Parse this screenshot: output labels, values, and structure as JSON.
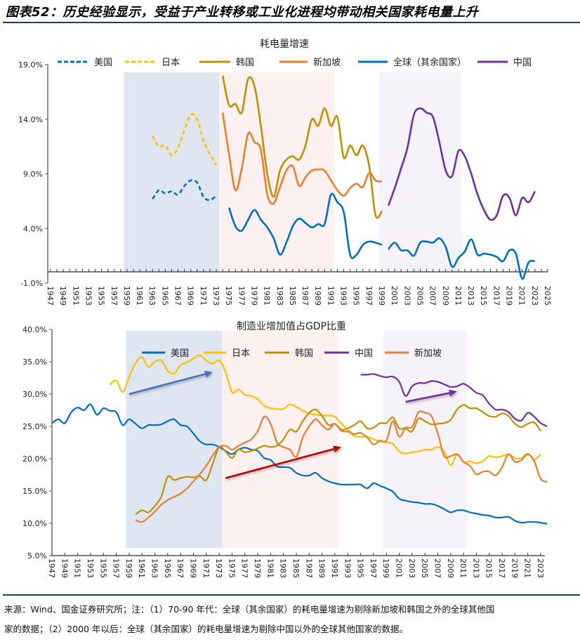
{
  "title": "图表52：历史经验显示，受益于产业转移或工业化进程均带动相关国家耗电量上升",
  "footnote": {
    "line1": "来源：Wind、国金证券研究所；注：（1）70-90 年代：全球（其余国家）的耗电量增速为剔除新加坡和韩国之外的全球其他国",
    "line2": "家的数据；（2）2000 年以后：全球（其余国家）的耗电量增速为剔除中国以外的全球其他国家的数据。"
  },
  "colors": {
    "us": "#0070C0",
    "japan": "#FFC000",
    "korea": "#BF9000",
    "singapore": "#ED7D31",
    "global": "#0070C0",
    "china": "#7030A0",
    "shade_1": "#E0E6F1",
    "shade_2": "#FDF0F0",
    "shade_3": "#F6F2F9",
    "arrow_blue": "#4472C4",
    "arrow_red": "#C00000",
    "arrow_purple": "#7030A0"
  },
  "chart_data": [
    {
      "type": "line",
      "title": "耗电量增速",
      "ylim": [
        -1,
        19
      ],
      "y_ticks": [
        "19.0%",
        "14.0%",
        "9.0%",
        "4.0%",
        "-1.0%"
      ],
      "y_tick_values": [
        19,
        14,
        9,
        4,
        -1
      ],
      "x_ticks": [
        "1947",
        "1949",
        "1951",
        "1953",
        "1955",
        "1957",
        "1959",
        "1961",
        "1963",
        "1965",
        "1967",
        "1969",
        "1971",
        "1973",
        "1975",
        "1977",
        "1979",
        "1981",
        "1983",
        "1985",
        "1987",
        "1989",
        "1991",
        "1993",
        "1995",
        "1997",
        "1999",
        "2001",
        "2003",
        "2005",
        "2007",
        "2009",
        "2011",
        "2013",
        "2015",
        "2017",
        "2019",
        "2021",
        "2023",
        "2025"
      ],
      "xlim": [
        1947,
        2025
      ],
      "grid": false,
      "legend": "top",
      "highlight_periods": [
        [
          1959,
          1973
        ],
        [
          1974,
          1991
        ],
        [
          1999,
          2011
        ]
      ],
      "legend_items": [
        {
          "name": "美国",
          "color_key": "us",
          "style": "dashed"
        },
        {
          "name": "日本",
          "color_key": "japan",
          "style": "dashed"
        },
        {
          "name": "韩国",
          "color_key": "korea",
          "style": "solid"
        },
        {
          "name": "新加坡",
          "color_key": "singapore",
          "style": "solid"
        },
        {
          "name": "全球（其余国家）",
          "color_key": "global",
          "style": "solid"
        },
        {
          "name": "中国",
          "color_key": "china",
          "style": "solid"
        }
      ],
      "series": [
        {
          "name": "美国",
          "color_key": "us",
          "style": "dashed",
          "start_year": 1963,
          "values": [
            6.7,
            7.5,
            7.2,
            7.4,
            7.1,
            7.9,
            8.4,
            8.2,
            6.9,
            6.6,
            7.0
          ]
        },
        {
          "name": "日本",
          "color_key": "japan",
          "style": "dashed",
          "start_year": 1963,
          "values": [
            12.5,
            11.5,
            11.6,
            10.7,
            11.4,
            13.0,
            14.4,
            14.0,
            12.0,
            10.8,
            9.8
          ]
        },
        {
          "name": "韩国",
          "color_key": "korea",
          "style": "solid",
          "start_year": 1974,
          "values": [
            18.0,
            15.3,
            15.4,
            14.6,
            17.7,
            17.0,
            13.4,
            9.0,
            6.9,
            9.3,
            10.3,
            10.6,
            10.3,
            11.6,
            14.0,
            13.4,
            15.0,
            13.4,
            14.2,
            10.5,
            11.6,
            10.7,
            11.6,
            9.7,
            5.2,
            5.6
          ]
        },
        {
          "name": "新加坡",
          "color_key": "singapore",
          "style": "solid",
          "start_year": 1974,
          "values": [
            14.6,
            10.8,
            7.5,
            9.5,
            12.7,
            11.9,
            11.2,
            7.1,
            6.3,
            7.8,
            9.3,
            9.7,
            7.9,
            8.7,
            9.3,
            9.4,
            9.3,
            8.4,
            7.5,
            7.0,
            7.7,
            8.1,
            7.8,
            9.1,
            8.4,
            8.3
          ]
        },
        {
          "name": "全球（其余国家）",
          "color_key": "global",
          "style": "solid",
          "start_year": 1975,
          "values": [
            5.9,
            4.2,
            3.8,
            4.8,
            5.7,
            4.8,
            4.1,
            3.1,
            1.6,
            2.7,
            4.2,
            4.9,
            4.5,
            4.1,
            4.4,
            4.4,
            7.1,
            6.4,
            5.5,
            1.6,
            1.6,
            2.5,
            2.8,
            2.7,
            2.5
          ]
        },
        {
          "name": "全球（其余国家）",
          "color_key": "global",
          "style": "solid",
          "start_year": 2000,
          "values": [
            2.1,
            2.7,
            2.0,
            2.0,
            1.5,
            2.7,
            2.8,
            2.7,
            3.1,
            2.3,
            0.5,
            1.3,
            1.9,
            3.0,
            1.6,
            1.7,
            1.6,
            1.4,
            1.0,
            2.0,
            1.7,
            -0.6,
            0.9,
            1.0
          ]
        },
        {
          "name": "中国",
          "color_key": "china",
          "style": "solid",
          "start_year": 2000,
          "values": [
            6.1,
            7.7,
            9.5,
            11.4,
            14.4,
            15.0,
            14.6,
            14.2,
            11.9,
            9.3,
            8.8,
            11.1,
            10.6,
            9.0,
            7.1,
            5.7,
            4.8,
            5.2,
            7.0,
            6.8,
            5.2,
            6.8,
            6.4,
            7.4
          ]
        }
      ]
    },
    {
      "type": "line",
      "title": "制造业增加值占GDP比重",
      "ylim": [
        5,
        40
      ],
      "y_ticks": [
        "40.0%",
        "35.0%",
        "30.0%",
        "25.0%",
        "20.0%",
        "15.0%",
        "10.0%",
        "5.0%"
      ],
      "y_tick_values": [
        40,
        35,
        30,
        25,
        20,
        15,
        10,
        5
      ],
      "x_ticks": [
        "1947",
        "1949",
        "1951",
        "1953",
        "1955",
        "1957",
        "1959",
        "1961",
        "1963",
        "1965",
        "1967",
        "1969",
        "1971",
        "1973",
        "1975",
        "1977",
        "1979",
        "1981",
        "1983",
        "1985",
        "1987",
        "1989",
        "1991",
        "1993",
        "1995",
        "1997",
        "1999",
        "2001",
        "2003",
        "2005",
        "2007",
        "2009",
        "2011",
        "2013",
        "2015",
        "2017",
        "2019",
        "2021",
        "2023"
      ],
      "xlim": [
        1947,
        2023
      ],
      "grid": false,
      "legend": "top",
      "highlight_periods": [
        [
          1959,
          1973
        ],
        [
          1974,
          1991
        ],
        [
          1999,
          2011
        ]
      ],
      "legend_items": [
        {
          "name": "美国",
          "color_key": "us"
        },
        {
          "name": "日本",
          "color_key": "japan"
        },
        {
          "name": "韩国",
          "color_key": "korea"
        },
        {
          "name": "中国",
          "color_key": "china"
        },
        {
          "name": "新加坡",
          "color_key": "singapore"
        }
      ],
      "trend_arrows": [
        {
          "color_key": "arrow_blue",
          "from": [
            1959,
            30.0
          ],
          "to": [
            1972,
            33.4
          ]
        },
        {
          "color_key": "arrow_red",
          "from": [
            1974,
            17.0
          ],
          "to": [
            1992,
            21.8
          ]
        },
        {
          "color_key": "arrow_purple",
          "from": [
            2002,
            28.8
          ],
          "to": [
            2010,
            30.4
          ]
        }
      ],
      "series": [
        {
          "name": "美国",
          "color_key": "us",
          "start_year": 1947,
          "values": [
            25.5,
            26.1,
            25.5,
            27.2,
            27.9,
            27.5,
            28.4,
            26.8,
            27.8,
            27.4,
            27.2,
            25.2,
            26.1,
            25.4,
            24.7,
            25.2,
            25.2,
            25.3,
            25.8,
            26.1,
            25.2,
            25.0,
            23.9,
            22.7,
            22.2,
            22.2,
            21.8,
            21.2,
            20.7,
            21.4,
            21.7,
            21.4,
            21.2,
            20.1,
            19.8,
            18.8,
            18.7,
            18.6,
            17.8,
            17.4,
            17.4,
            17.8,
            17.0,
            16.5,
            16.2,
            16.0,
            16.0,
            16.0,
            16.0,
            15.4,
            16.2,
            15.8,
            15.4,
            14.9,
            13.8,
            13.5,
            13.3,
            13.2,
            13.0,
            13.0,
            12.7,
            12.2,
            11.7,
            12.0,
            12.0,
            11.7,
            11.5,
            11.3,
            11.2,
            10.9,
            10.9,
            11.0,
            10.4,
            10.1,
            10.2,
            10.2,
            10.1,
            9.9
          ]
        },
        {
          "name": "日本",
          "color_key": "japan",
          "start_year": 1956,
          "values": [
            31.4,
            32.1,
            30.3,
            32.6,
            34.8,
            35.7,
            34.2,
            35.0,
            35.2,
            33.6,
            33.2,
            34.5,
            34.9,
            35.5,
            36.0,
            35.2,
            34.7,
            35.2,
            33.4,
            30.3,
            30.7,
            29.9,
            29.7,
            29.2,
            28.2,
            27.8,
            27.7,
            27.7,
            28.4,
            28.0,
            27.4,
            27.0,
            26.8,
            26.7,
            26.7,
            26.5,
            25.4,
            24.5,
            23.5,
            23.4,
            23.4,
            23.0,
            22.7,
            22.5,
            22.3,
            21.1,
            20.8,
            21.0,
            21.1,
            21.4,
            21.4,
            21.8,
            21.1,
            19.0,
            20.7,
            19.5,
            19.6,
            19.3,
            19.6,
            20.4,
            20.2,
            20.4,
            20.7,
            20.1,
            20.1,
            20.8,
            19.9,
            20.7
          ]
        },
        {
          "name": "韩国",
          "color_key": "korea",
          "start_year": 1960,
          "values": [
            11.4,
            12.0,
            11.7,
            12.7,
            14.1,
            17.2,
            16.7,
            17.0,
            17.2,
            17.1,
            17.3,
            16.7,
            19.2,
            21.8,
            21.1,
            20.1,
            21.4,
            21.0,
            21.2,
            21.6,
            22.0,
            21.8,
            22.0,
            23.0,
            24.5,
            24.2,
            25.8,
            27.1,
            27.6,
            26.6,
            25.2,
            25.4,
            24.5,
            24.7,
            25.2,
            25.8,
            24.7,
            24.8,
            25.5,
            25.5,
            26.4,
            24.7,
            24.7,
            24.2,
            26.2,
            25.8,
            25.3,
            25.4,
            25.5,
            26.0,
            27.6,
            28.3,
            27.8,
            27.8,
            27.2,
            26.6,
            26.5,
            27.0,
            26.6,
            25.4,
            24.9,
            25.4,
            25.6,
            24.3
          ]
        },
        {
          "name": "中国",
          "color_key": "china",
          "start_year": 1995,
          "values": [
            33.0,
            33.0,
            33.1,
            32.8,
            32.6,
            32.7,
            31.9,
            29.7,
            31.2,
            31.7,
            31.7,
            32.0,
            31.9,
            31.5,
            31.1,
            31.2,
            31.6,
            31.0,
            30.2,
            29.8,
            28.5,
            27.6,
            27.6,
            27.2,
            26.2,
            25.9,
            27.1,
            26.5,
            25.5,
            25.0
          ]
        },
        {
          "name": "新加坡",
          "color_key": "singapore",
          "start_year": 1960,
          "values": [
            10.5,
            10.2,
            10.9,
            11.8,
            12.9,
            13.6,
            14.1,
            14.6,
            15.4,
            16.5,
            17.6,
            18.9,
            20.5,
            21.8,
            22.0,
            21.4,
            22.0,
            22.5,
            23.0,
            24.3,
            26.5,
            25.4,
            22.5,
            21.8,
            21.4,
            20.3,
            23.3,
            25.0,
            26.1,
            25.2,
            24.5,
            25.4,
            24.3,
            24.2,
            23.8,
            24.0,
            23.3,
            22.2,
            22.8,
            22.8,
            25.8,
            23.4,
            24.8,
            24.9,
            27.2,
            27.1,
            26.6,
            23.9,
            20.4,
            20.4,
            20.7,
            19.5,
            18.9,
            17.6,
            18.0,
            18.0,
            17.4,
            18.7,
            20.7,
            19.5,
            19.8,
            20.7,
            19.6,
            16.9,
            16.4
          ]
        }
      ]
    }
  ]
}
